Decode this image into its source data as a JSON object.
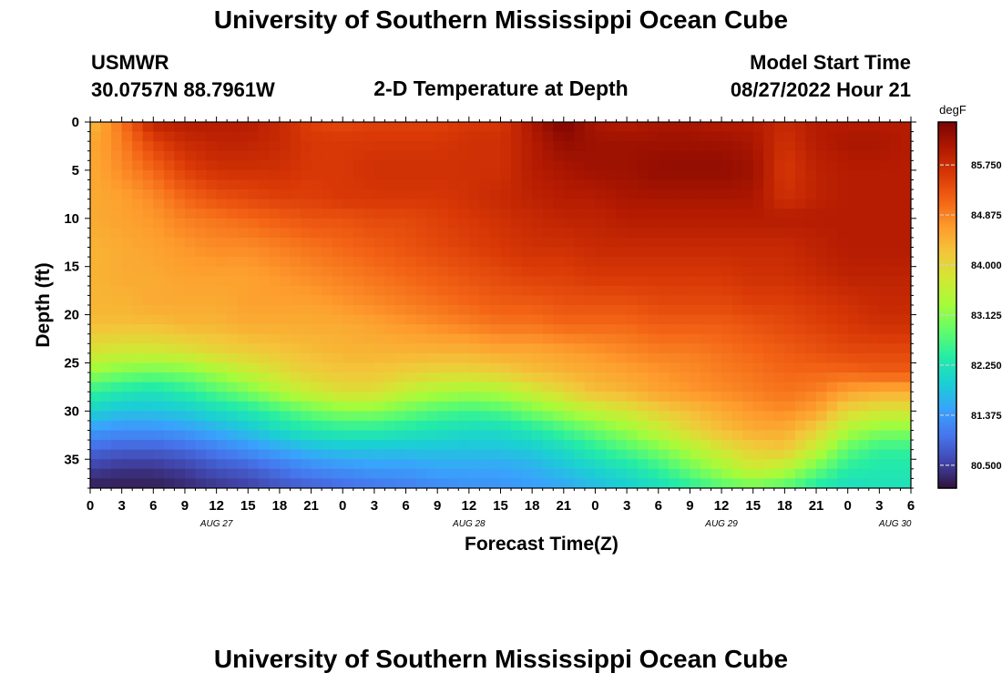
{
  "page": {
    "title": "University of Southern Mississippi Ocean Cube",
    "title_repeat": "University of Southern Mississippi Ocean Cube",
    "station_id": "USMWR",
    "station_coords": "30.0757N  88.7961W",
    "plot_label": "2-D Temperature at Depth",
    "model_start_label": "Model Start Time",
    "model_start_value": "08/27/2022 Hour 21"
  },
  "chart_data": {
    "type": "heatmap",
    "title": "2-D Temperature at Depth",
    "xlabel": "Forecast Time(Z)",
    "ylabel": "Depth (ft)",
    "x_range_hours_utc": [
      0,
      78
    ],
    "x_tick_step_hours": 3,
    "x_tick_labels": [
      "0",
      "3",
      "6",
      "9",
      "12",
      "15",
      "18",
      "21",
      "0",
      "3",
      "6",
      "9",
      "12",
      "15",
      "18",
      "21",
      "0",
      "3",
      "6",
      "9",
      "12",
      "15",
      "18",
      "21",
      "0",
      "3",
      "6"
    ],
    "date_labels": [
      {
        "label": "AUG 27",
        "hour": 12
      },
      {
        "label": "AUG 28",
        "hour": 36
      },
      {
        "label": "AUG 29",
        "hour": 60
      },
      {
        "label": "AUG 30",
        "hour": 76.5
      }
    ],
    "y_range_ft": [
      0,
      38
    ],
    "y_inverted": true,
    "y_ticks": [
      0,
      5,
      10,
      15,
      20,
      25,
      30,
      35
    ],
    "colorbar": {
      "unit": "degF",
      "ticks": [
        "85.750",
        "84.875",
        "84.000",
        "83.125",
        "82.250",
        "81.375",
        "80.500"
      ],
      "range": [
        80.1,
        86.5
      ],
      "colors": [
        "#30123b",
        "#4145ab",
        "#4675ed",
        "#39a2fc",
        "#1bcfd4",
        "#24eca6",
        "#61fc6c",
        "#a4fc3b",
        "#d1e834",
        "#f3c63a",
        "#fe9b2d",
        "#f36315",
        "#d93806",
        "#b11901",
        "#7a0402"
      ]
    },
    "z_grid": {
      "x_hours": [
        0,
        3,
        6,
        9,
        12,
        15,
        18,
        21,
        24,
        27,
        30,
        33,
        36,
        39,
        42,
        45,
        48,
        51,
        54,
        57,
        60,
        63,
        66,
        69,
        72,
        75,
        78
      ],
      "y_depths_ft": [
        0,
        2,
        5,
        8,
        10,
        13,
        16,
        19,
        21,
        24,
        26,
        28,
        30,
        32,
        34,
        36,
        38
      ],
      "values_degF": [
        [
          84.3,
          85.0,
          85.9,
          86.0,
          86.0,
          86.0,
          85.8,
          85.5,
          85.4,
          85.5,
          85.5,
          85.5,
          85.6,
          85.6,
          86.1,
          86.5,
          86.1,
          86.0,
          86.1,
          86.1,
          86.0,
          86.0,
          85.8,
          86.0,
          86.0,
          86.0,
          86.0
        ],
        [
          84.5,
          84.9,
          85.5,
          85.8,
          85.9,
          85.9,
          85.8,
          85.6,
          85.6,
          85.6,
          85.6,
          85.6,
          85.7,
          85.7,
          86.0,
          86.3,
          86.2,
          86.2,
          86.2,
          86.2,
          86.2,
          86.1,
          85.7,
          86.0,
          86.1,
          86.1,
          86.0
        ],
        [
          84.5,
          84.8,
          85.1,
          85.5,
          85.7,
          85.7,
          85.7,
          85.6,
          85.6,
          85.7,
          85.7,
          85.7,
          85.7,
          85.7,
          86.0,
          86.1,
          86.2,
          86.2,
          86.3,
          86.3,
          86.3,
          86.2,
          85.6,
          85.9,
          86.0,
          86.0,
          86.0
        ],
        [
          84.5,
          84.6,
          84.8,
          85.1,
          85.3,
          85.4,
          85.5,
          85.5,
          85.6,
          85.6,
          85.6,
          85.6,
          85.7,
          85.8,
          85.9,
          86.0,
          86.0,
          86.1,
          86.1,
          86.1,
          86.1,
          86.1,
          85.7,
          85.9,
          86.0,
          86.0,
          86.0
        ],
        [
          84.5,
          84.6,
          84.7,
          84.9,
          85.0,
          85.1,
          85.2,
          85.3,
          85.3,
          85.4,
          85.4,
          85.5,
          85.6,
          85.7,
          85.8,
          85.9,
          85.9,
          86.0,
          86.0,
          86.0,
          86.0,
          86.0,
          86.0,
          86.0,
          86.0,
          86.0,
          86.0
        ],
        [
          84.4,
          84.5,
          84.6,
          84.7,
          84.8,
          84.8,
          84.9,
          85.0,
          85.1,
          85.2,
          85.3,
          85.4,
          85.5,
          85.6,
          85.7,
          85.7,
          85.8,
          85.8,
          85.8,
          85.8,
          85.8,
          85.8,
          85.8,
          85.9,
          86.0,
          86.0,
          86.0
        ],
        [
          84.4,
          84.5,
          84.5,
          84.6,
          84.6,
          84.6,
          84.7,
          84.8,
          84.9,
          85.0,
          85.1,
          85.2,
          85.3,
          85.4,
          85.5,
          85.5,
          85.6,
          85.6,
          85.6,
          85.6,
          85.6,
          85.7,
          85.7,
          85.8,
          85.9,
          85.9,
          85.9
        ],
        [
          84.4,
          84.4,
          84.5,
          84.5,
          84.5,
          84.6,
          84.6,
          84.6,
          84.7,
          84.8,
          84.9,
          85.0,
          85.1,
          85.2,
          85.2,
          85.3,
          85.3,
          85.3,
          85.4,
          85.4,
          85.4,
          85.5,
          85.5,
          85.6,
          85.7,
          85.8,
          85.8
        ],
        [
          84.3,
          84.3,
          84.3,
          84.4,
          84.4,
          84.5,
          84.5,
          84.5,
          84.5,
          84.6,
          84.7,
          84.8,
          84.9,
          85.0,
          85.0,
          85.1,
          85.1,
          85.1,
          85.2,
          85.2,
          85.2,
          85.3,
          85.4,
          85.5,
          85.6,
          85.7,
          85.7
        ],
        [
          83.8,
          83.7,
          83.7,
          83.8,
          84.0,
          84.1,
          84.2,
          84.3,
          84.4,
          84.4,
          84.4,
          84.4,
          84.4,
          84.5,
          84.5,
          84.6,
          84.7,
          84.8,
          84.9,
          84.9,
          85.0,
          85.1,
          85.2,
          85.3,
          85.4,
          85.4,
          85.4
        ],
        [
          83.2,
          83.0,
          82.9,
          83.0,
          83.3,
          83.6,
          83.9,
          84.1,
          84.2,
          84.2,
          84.1,
          84.0,
          84.0,
          84.1,
          84.3,
          84.4,
          84.5,
          84.6,
          84.7,
          84.8,
          84.9,
          85.0,
          85.1,
          85.1,
          85.1,
          85.2,
          85.2
        ],
        [
          82.5,
          82.3,
          82.2,
          82.4,
          82.7,
          83.0,
          83.4,
          83.7,
          83.9,
          83.9,
          83.6,
          83.4,
          83.3,
          83.4,
          83.7,
          84.0,
          84.3,
          84.4,
          84.6,
          84.7,
          84.8,
          84.9,
          85.0,
          84.9,
          84.6,
          84.5,
          84.5
        ],
        [
          82.0,
          81.8,
          81.8,
          81.9,
          82.1,
          82.3,
          82.6,
          82.9,
          83.1,
          83.1,
          82.9,
          82.7,
          82.6,
          82.7,
          83.0,
          83.3,
          83.6,
          83.8,
          84.1,
          84.3,
          84.5,
          84.7,
          84.8,
          84.6,
          84.0,
          83.8,
          83.8
        ],
        [
          81.4,
          81.3,
          81.3,
          81.4,
          81.6,
          81.8,
          82.1,
          82.3,
          82.4,
          82.4,
          82.3,
          82.2,
          82.1,
          82.1,
          82.3,
          82.6,
          82.9,
          83.2,
          83.6,
          84.0,
          84.3,
          84.5,
          84.5,
          84.1,
          83.4,
          83.1,
          83.1
        ],
        [
          80.9,
          80.8,
          80.8,
          80.9,
          81.1,
          81.3,
          81.5,
          81.7,
          81.8,
          81.8,
          81.8,
          81.8,
          81.8,
          81.8,
          81.9,
          82.1,
          82.4,
          82.7,
          83.0,
          83.4,
          83.8,
          84.1,
          84.2,
          83.6,
          82.8,
          82.5,
          82.5
        ],
        [
          80.5,
          80.4,
          80.4,
          80.5,
          80.7,
          80.8,
          81.0,
          81.2,
          81.3,
          81.4,
          81.4,
          81.5,
          81.5,
          81.5,
          81.6,
          81.8,
          82.0,
          82.2,
          82.5,
          82.9,
          83.3,
          83.7,
          83.5,
          82.9,
          82.4,
          82.3,
          82.3
        ],
        [
          80.2,
          80.2,
          80.2,
          80.3,
          80.4,
          80.5,
          80.7,
          80.8,
          80.9,
          81.0,
          81.1,
          81.2,
          81.3,
          81.3,
          81.4,
          81.5,
          81.7,
          81.9,
          82.1,
          82.4,
          82.7,
          82.9,
          82.7,
          82.3,
          82.1,
          82.2,
          82.2
        ]
      ]
    }
  }
}
